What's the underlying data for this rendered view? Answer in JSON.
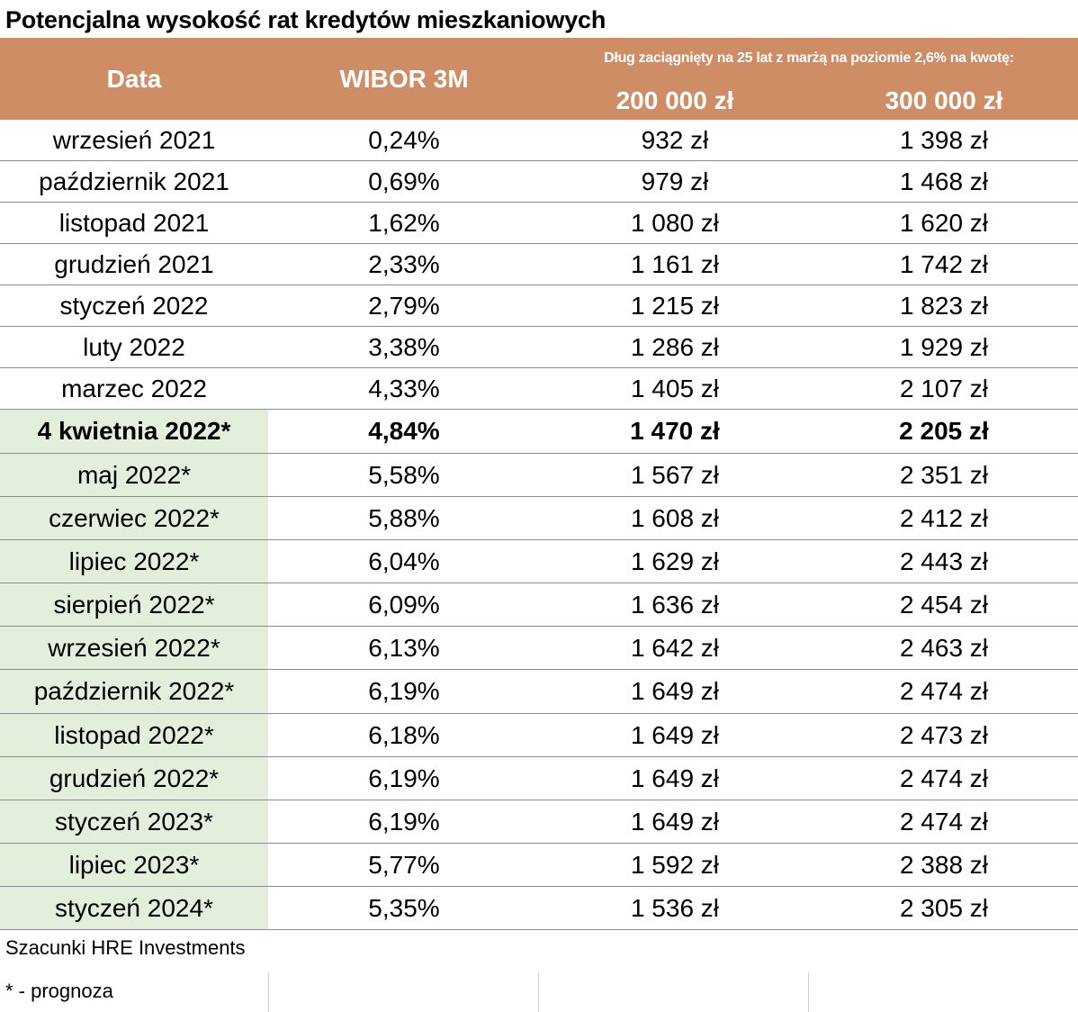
{
  "title": "Potencjalna wysokość rat kredytów mieszkaniowych",
  "colors": {
    "header_bg": "#cf8d66",
    "forecast_bg": "#e3eedb",
    "header_text": "#ffffff"
  },
  "chart_data": {
    "type": "table",
    "title": "Potencjalna wysokość rat kredytów mieszkaniowych",
    "columns": [
      "Data",
      "WIBOR 3M",
      "200 000 zł",
      "300 000 zł"
    ],
    "span_header": "Dług zaciągnięty na 25 lat z marżą na poziomie 2,6% na kwotę:",
    "rows": [
      {
        "date": "wrzesień 2021",
        "wibor": "0,24%",
        "a200": "932 zł",
        "a300": "1 398 zł",
        "forecast": false,
        "bold": false
      },
      {
        "date": "październik 2021",
        "wibor": "0,69%",
        "a200": "979 zł",
        "a300": "1 468 zł",
        "forecast": false,
        "bold": false
      },
      {
        "date": "listopad 2021",
        "wibor": "1,62%",
        "a200": "1 080 zł",
        "a300": "1 620 zł",
        "forecast": false,
        "bold": false
      },
      {
        "date": "grudzień 2021",
        "wibor": "2,33%",
        "a200": "1 161 zł",
        "a300": "1 742 zł",
        "forecast": false,
        "bold": false
      },
      {
        "date": "styczeń 2022",
        "wibor": "2,79%",
        "a200": "1 215 zł",
        "a300": "1 823 zł",
        "forecast": false,
        "bold": false
      },
      {
        "date": "luty 2022",
        "wibor": "3,38%",
        "a200": "1 286 zł",
        "a300": "1 929 zł",
        "forecast": false,
        "bold": false
      },
      {
        "date": "marzec 2022",
        "wibor": "4,33%",
        "a200": "1 405 zł",
        "a300": "2 107 zł",
        "forecast": false,
        "bold": false
      },
      {
        "date": "4 kwietnia 2022*",
        "wibor": "4,84%",
        "a200": "1 470 zł",
        "a300": "2 205 zł",
        "forecast": true,
        "bold": true
      },
      {
        "date": "maj 2022*",
        "wibor": "5,58%",
        "a200": "1 567 zł",
        "a300": "2 351 zł",
        "forecast": true,
        "bold": false
      },
      {
        "date": "czerwiec 2022*",
        "wibor": "5,88%",
        "a200": "1 608 zł",
        "a300": "2 412 zł",
        "forecast": true,
        "bold": false
      },
      {
        "date": "lipiec 2022*",
        "wibor": "6,04%",
        "a200": "1 629 zł",
        "a300": "2 443 zł",
        "forecast": true,
        "bold": false
      },
      {
        "date": "sierpień 2022*",
        "wibor": "6,09%",
        "a200": "1 636 zł",
        "a300": "2 454 zł",
        "forecast": true,
        "bold": false
      },
      {
        "date": "wrzesień 2022*",
        "wibor": "6,13%",
        "a200": "1 642 zł",
        "a300": "2 463 zł",
        "forecast": true,
        "bold": false
      },
      {
        "date": "październik 2022*",
        "wibor": "6,19%",
        "a200": "1 649 zł",
        "a300": "2 474 zł",
        "forecast": true,
        "bold": false
      },
      {
        "date": "listopad 2022*",
        "wibor": "6,18%",
        "a200": "1 649 zł",
        "a300": "2 473 zł",
        "forecast": true,
        "bold": false
      },
      {
        "date": "grudzień 2022*",
        "wibor": "6,19%",
        "a200": "1 649 zł",
        "a300": "2 474 zł",
        "forecast": true,
        "bold": false
      },
      {
        "date": "styczeń 2023*",
        "wibor": "6,19%",
        "a200": "1 649 zł",
        "a300": "2 474 zł",
        "forecast": true,
        "bold": false
      },
      {
        "date": "lipiec 2023*",
        "wibor": "5,77%",
        "a200": "1 592 zł",
        "a300": "2 388 zł",
        "forecast": true,
        "bold": false
      },
      {
        "date": "styczeń 2024*",
        "wibor": "5,35%",
        "a200": "1 536 zł",
        "a300": "2 305 zł",
        "forecast": true,
        "bold": false
      }
    ]
  },
  "footer": {
    "source": "Szacunki HRE Investments",
    "legend": "* - prognoza"
  }
}
